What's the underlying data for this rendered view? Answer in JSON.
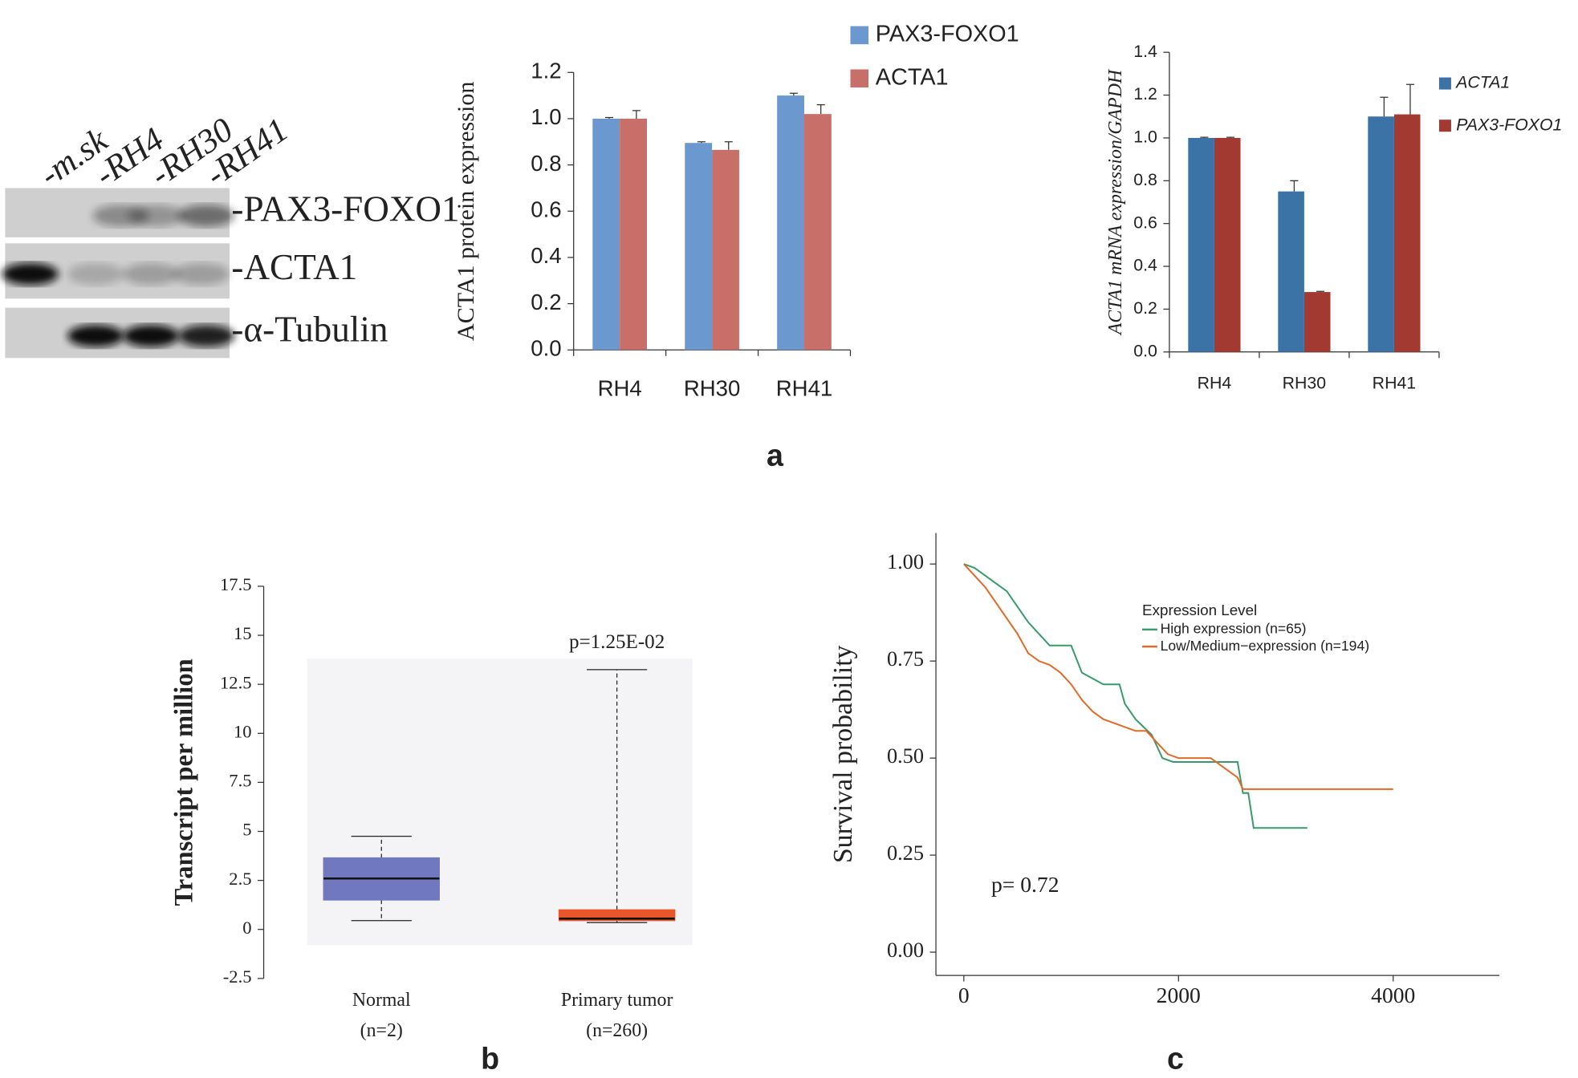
{
  "blot": {
    "lanes": [
      "-m.sk",
      "-RH4",
      "-RH30",
      "-RH41"
    ],
    "bands": [
      "-PAX3-FOXO1",
      "-ACTA1",
      "-α-Tubulin"
    ]
  },
  "panels": [
    "a",
    "b",
    "c"
  ],
  "chart_data": [
    {
      "type": "bar",
      "y_label": "ACTA1 protein expression",
      "categories": [
        "RH4",
        "RH30",
        "RH41"
      ],
      "series": [
        {
          "name": "PAX3-FOXO1",
          "color": "#6a98cf",
          "values": [
            1.0,
            0.895,
            1.1
          ],
          "errors": [
            0.005,
            0.005,
            0.01
          ]
        },
        {
          "name": "ACTA1",
          "color": "#c96f69",
          "values": [
            1.0,
            0.865,
            1.02
          ],
          "errors": [
            0.035,
            0.035,
            0.04
          ]
        }
      ],
      "ylim": [
        0,
        1.2
      ],
      "yticks": [
        {
          "value": 0,
          "label": "0.0"
        },
        0.2,
        0.4,
        0.6,
        0.8,
        {
          "value": 1,
          "label": "1.0"
        },
        1.2
      ],
      "legend": "upper right"
    },
    {
      "type": "bar",
      "y_label": "ACTA1 mRNA expression/GAPDH",
      "categories": [
        "RH4",
        "RH30",
        "RH41"
      ],
      "series": [
        {
          "name": "ACTA1",
          "color": "#3b73a6",
          "values": [
            1.0,
            0.75,
            1.1
          ],
          "errors": [
            0.003,
            0.05,
            0.09
          ]
        },
        {
          "name": "PAX3-FOXO1",
          "color": "#a33a32",
          "values": [
            1.0,
            0.28,
            1.11
          ],
          "errors": [
            0.003,
            0.003,
            0.14
          ]
        }
      ],
      "ylim": [
        0,
        1.4
      ],
      "yticks": [
        {
          "value": 0,
          "label": "0.0"
        },
        0.2,
        0.4,
        0.6,
        0.8,
        {
          "value": 1,
          "label": "1.0"
        },
        1.2,
        1.4
      ],
      "legend": "right"
    },
    {
      "type": "box",
      "y_label": "Transcript per million",
      "categories": [
        "Normal",
        "Primary tumor"
      ],
      "category_counts": [
        "(n=2)",
        "(n=260)"
      ],
      "colors": [
        "#7079c0",
        "#e8562a"
      ],
      "boxes": [
        {
          "min": 0.45,
          "q1": 1.5,
          "median": 2.6,
          "q3": 3.65,
          "max": 4.75
        },
        {
          "min": 0.35,
          "q1": 0.45,
          "median": 0.55,
          "q3": 1.0,
          "max": 13.25
        }
      ],
      "annotation": "p=1.25E-02",
      "ylim": [
        -2.5,
        17.5
      ],
      "yticks": [
        -2.5,
        0,
        2.5,
        5,
        7.5,
        10,
        12.5,
        15,
        17.5
      ]
    },
    {
      "type": "line",
      "y_label": "Survival probability",
      "legend_title": "Expression Level",
      "annotation": "p= 0.72",
      "series": [
        {
          "name": "High expression (n=65)",
          "color": "#3a9a6b",
          "x": [
            0,
            100,
            200,
            300,
            400,
            500,
            600,
            700,
            800,
            1000,
            1100,
            1300,
            1450,
            1500,
            1600,
            1750,
            1850,
            1950,
            2550,
            2600,
            2650,
            2700,
            3200
          ],
          "values": [
            1.0,
            0.99,
            0.97,
            0.95,
            0.93,
            0.89,
            0.85,
            0.82,
            0.79,
            0.79,
            0.72,
            0.69,
            0.69,
            0.64,
            0.6,
            0.56,
            0.5,
            0.49,
            0.49,
            0.41,
            0.41,
            0.32,
            0.32
          ]
        },
        {
          "name": "Low/Medium−expression (n=194)",
          "color": "#e06a2a",
          "x": [
            0,
            100,
            200,
            300,
            400,
            500,
            600,
            700,
            800,
            900,
            1000,
            1100,
            1200,
            1300,
            1400,
            1500,
            1600,
            1700,
            1800,
            1900,
            2000,
            2300,
            2400,
            2550,
            2600,
            4000
          ],
          "values": [
            1.0,
            0.97,
            0.94,
            0.9,
            0.86,
            0.82,
            0.77,
            0.75,
            0.74,
            0.72,
            0.69,
            0.65,
            0.62,
            0.6,
            0.59,
            0.58,
            0.57,
            0.57,
            0.54,
            0.51,
            0.5,
            0.5,
            0.48,
            0.45,
            0.42,
            0.42
          ]
        }
      ],
      "xlim": [
        -260,
        4990
      ],
      "xticks": [
        0,
        2000,
        4000
      ],
      "ylim": [
        -0.06,
        1.08
      ],
      "yticks": [
        {
          "value": 0,
          "label": "0.00"
        },
        {
          "value": 0.25,
          "label": "0.25"
        },
        {
          "value": 0.5,
          "label": "0.50"
        },
        {
          "value": 0.75,
          "label": "0.75"
        },
        {
          "value": 1,
          "label": "1.00"
        }
      ]
    }
  ]
}
